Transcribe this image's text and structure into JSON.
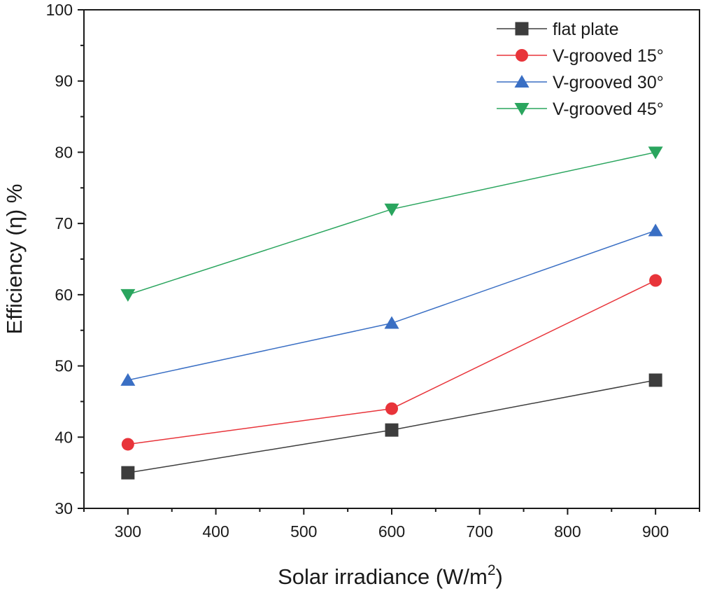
{
  "chart_data": {
    "type": "line",
    "title": "",
    "xlabel": "Solar irradiance (W/m",
    "xlabel_superscript": "2",
    "xlabel_suffix": ")",
    "ylabel": "Efficiency (η) %",
    "xlim": [
      250,
      950
    ],
    "ylim": [
      30,
      100
    ],
    "xticks": [
      300,
      400,
      500,
      600,
      700,
      800,
      900
    ],
    "yticks": [
      30,
      40,
      50,
      60,
      70,
      80,
      90,
      100
    ],
    "x": [
      300,
      600,
      900
    ],
    "legend_position": "top-right",
    "grid": false,
    "series": [
      {
        "name": "flat plate",
        "values": [
          35,
          41,
          48
        ],
        "color": "#3d3d3d",
        "marker": "square"
      },
      {
        "name": "V-grooved 15°",
        "values": [
          39,
          44,
          62
        ],
        "color": "#e8343a",
        "marker": "circle"
      },
      {
        "name": "V-grooved 30°",
        "values": [
          48,
          56,
          69
        ],
        "color": "#3a6fc4",
        "marker": "triangle-up"
      },
      {
        "name": "V-grooved 45°",
        "values": [
          60,
          72,
          80
        ],
        "color": "#2aa55e",
        "marker": "triangle-down"
      }
    ]
  }
}
